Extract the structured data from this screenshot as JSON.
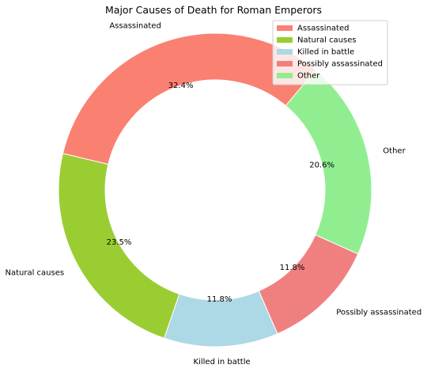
{
  "chart_data": {
    "type": "pie",
    "style": "donut",
    "title": "Major Causes of Death for Roman Emperors",
    "categories": [
      "Assassinated",
      "Natural causes",
      "Killed in battle",
      "Possibly assassinated",
      "Other"
    ],
    "values": [
      32.4,
      23.5,
      11.8,
      11.8,
      20.6
    ],
    "value_labels": [
      "32.4%",
      "23.5%",
      "11.8%",
      "11.8%",
      "20.6%"
    ],
    "colors": [
      "#fa8072",
      "#9acd32",
      "#add8e6",
      "#f08080",
      "#90ee90"
    ],
    "start_angle_deg": 50,
    "direction": "counterclockwise",
    "legend": {
      "placement": "top-right",
      "entries": [
        "Assassinated",
        "Natural causes",
        "Killed in battle",
        "Possibly assassinated",
        "Other"
      ]
    },
    "grid": false
  }
}
